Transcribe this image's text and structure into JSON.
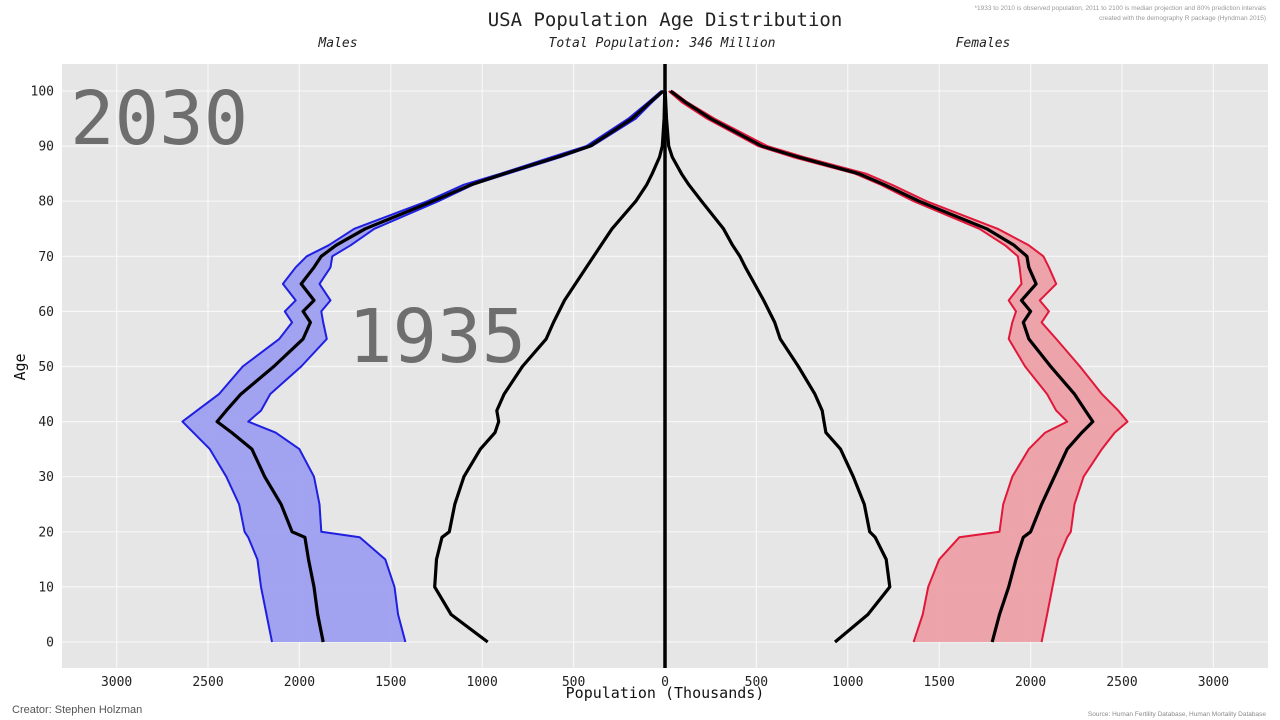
{
  "chart_data": {
    "type": "line",
    "title": "USA Population Age Distribution",
    "subtitle": "Total Population: 346 Million",
    "left_label": "Males",
    "right_label": "Females",
    "xlabel": "Population (Thousands)",
    "ylabel": "Age",
    "note_lines": [
      "*1933 to 2010 is observed population, 2011 to 2100 is median projection and 80% prediction intervals",
      "created with the demography R package (Hyndman 2015)"
    ],
    "creator": "Creator: Stephen Holzman",
    "source": "Source: Human Fertility Database, Human Mortality Database",
    "year_current": "2030",
    "year_reference": "1935",
    "x_ticks": [
      3000,
      2500,
      2000,
      1500,
      1000,
      500,
      0,
      500,
      1000,
      1500,
      2000,
      2500,
      3000
    ],
    "y_ticks": [
      0,
      10,
      20,
      30,
      40,
      50,
      60,
      70,
      80,
      90,
      100
    ],
    "xlim": [
      -3000,
      3000
    ],
    "ylim": [
      0,
      100
    ],
    "grid": true,
    "colors": {
      "male_line": "#1f1fe0",
      "male_fill": "#9e9ff0",
      "female_line": "#e0183a",
      "female_fill": "#ec9fa6",
      "median": "#000000",
      "background": "#e6e6e6",
      "grid": "#f7f7f7"
    },
    "age": [
      0,
      5,
      10,
      15,
      19,
      20,
      25,
      30,
      35,
      38,
      40,
      42,
      45,
      50,
      55,
      58,
      60,
      62,
      65,
      68,
      70,
      72,
      75,
      80,
      83,
      85,
      88,
      90,
      95,
      98,
      100
    ],
    "series": [
      {
        "name": "Males",
        "side": "left",
        "median_2030": [
          1870,
          1900,
          1920,
          1950,
          1970,
          2040,
          2100,
          2190,
          2260,
          2370,
          2450,
          2400,
          2320,
          2140,
          1980,
          1940,
          1980,
          1920,
          1990,
          1920,
          1880,
          1800,
          1640,
          1270,
          1060,
          880,
          590,
          410,
          180,
          80,
          10
        ],
        "lower_2030": [
          1420,
          1460,
          1480,
          1530,
          1670,
          1880,
          1890,
          1920,
          2000,
          2130,
          2280,
          2210,
          2160,
          1990,
          1850,
          1870,
          1880,
          1830,
          1890,
          1830,
          1820,
          1720,
          1590,
          1240,
          1050,
          860,
          570,
          400,
          160,
          70,
          5
        ],
        "upper_2030": [
          2150,
          2180,
          2210,
          2230,
          2280,
          2300,
          2330,
          2400,
          2490,
          2580,
          2640,
          2560,
          2440,
          2310,
          2110,
          2040,
          2080,
          2020,
          2090,
          2020,
          1960,
          1840,
          1700,
          1300,
          1100,
          900,
          620,
          430,
          200,
          90,
          20
        ],
        "values_1935": [
          970,
          1170,
          1260,
          1250,
          1220,
          1180,
          1150,
          1100,
          1010,
          930,
          910,
          920,
          880,
          780,
          650,
          610,
          580,
          550,
          490,
          430,
          390,
          350,
          290,
          160,
          100,
          70,
          30,
          15,
          5,
          3,
          1
        ]
      },
      {
        "name": "Females",
        "side": "right",
        "median_2030": [
          1790,
          1830,
          1880,
          1920,
          1960,
          2000,
          2060,
          2130,
          2200,
          2280,
          2340,
          2300,
          2240,
          2110,
          1990,
          1960,
          2000,
          1950,
          2030,
          1990,
          1980,
          1910,
          1760,
          1390,
          1200,
          1060,
          730,
          530,
          250,
          110,
          30
        ],
        "lower_2030": [
          1360,
          1410,
          1440,
          1500,
          1610,
          1830,
          1850,
          1900,
          1990,
          2080,
          2200,
          2140,
          2090,
          1970,
          1880,
          1900,
          1920,
          1880,
          1950,
          1940,
          1930,
          1860,
          1720,
          1360,
          1180,
          1040,
          700,
          510,
          230,
          90,
          20
        ],
        "upper_2030": [
          2060,
          2090,
          2120,
          2150,
          2200,
          2220,
          2240,
          2290,
          2390,
          2460,
          2530,
          2480,
          2390,
          2270,
          2140,
          2060,
          2100,
          2050,
          2140,
          2100,
          2070,
          1990,
          1820,
          1430,
          1240,
          1100,
          760,
          560,
          270,
          120,
          40
        ],
        "values_1935": [
          930,
          1110,
          1230,
          1210,
          1150,
          1120,
          1090,
          1030,
          960,
          880,
          870,
          860,
          820,
          730,
          630,
          600,
          570,
          540,
          490,
          440,
          410,
          370,
          320,
          200,
          130,
          90,
          40,
          20,
          8,
          4,
          1
        ]
      }
    ]
  }
}
